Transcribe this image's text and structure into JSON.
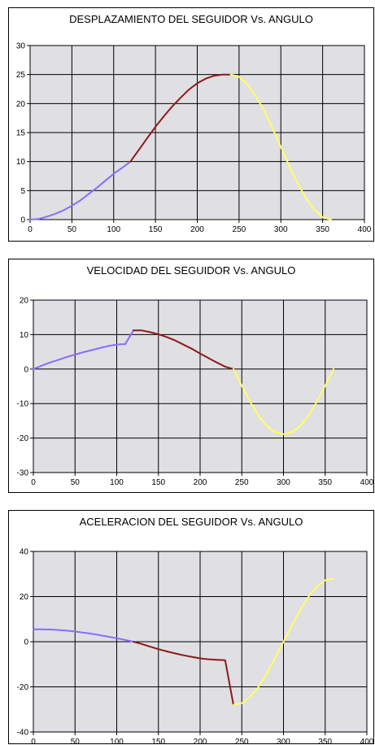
{
  "chart_data": [
    {
      "type": "line",
      "title": "DESPLAZAMIENTO DEL SEGUIDOR Vs. ANGULO",
      "xlabel": "",
      "ylabel": "",
      "xlim": [
        0,
        400
      ],
      "ylim": [
        0,
        30
      ],
      "xticks": [
        0,
        50,
        100,
        150,
        200,
        250,
        300,
        350,
        400
      ],
      "yticks": [
        0,
        5,
        10,
        15,
        20,
        25,
        30
      ],
      "grid": true,
      "plot_background": "#e0dfe3",
      "series": [
        {
          "color": "#8a6cff",
          "x": [
            0,
            10,
            20,
            30,
            40,
            50,
            60,
            70,
            80,
            90,
            100,
            110,
            120
          ],
          "y": [
            0,
            0.1,
            0.5,
            1.0,
            1.6,
            2.4,
            3.3,
            4.4,
            5.5,
            6.7,
            7.9,
            8.9,
            10.0
          ]
        },
        {
          "color": "#8b1a1a",
          "x": [
            120,
            130,
            140,
            150,
            160,
            170,
            180,
            190,
            200,
            210,
            220,
            230,
            240
          ],
          "y": [
            10.0,
            12.0,
            14.0,
            16.0,
            17.8,
            19.5,
            21.0,
            22.4,
            23.5,
            24.3,
            24.8,
            25.0,
            25.0
          ]
        },
        {
          "color": "#ffff66",
          "x": [
            240,
            250,
            260,
            270,
            280,
            290,
            300,
            310,
            320,
            330,
            340,
            350,
            360
          ],
          "y": [
            25.0,
            24.6,
            23.3,
            21.3,
            18.8,
            15.7,
            12.5,
            9.3,
            6.3,
            3.7,
            1.7,
            0.4,
            0
          ]
        }
      ]
    },
    {
      "type": "line",
      "title": "VELOCIDAD DEL SEGUIDOR Vs. ANGULO",
      "xlabel": "",
      "ylabel": "",
      "xlim": [
        0,
        400
      ],
      "ylim": [
        -30,
        20
      ],
      "xticks": [
        0,
        50,
        100,
        150,
        200,
        250,
        300,
        350,
        400
      ],
      "yticks": [
        -30,
        -20,
        -10,
        0,
        10,
        20
      ],
      "grid": true,
      "plot_background": "#e0dfe3",
      "series": [
        {
          "color": "#8a6cff",
          "x": [
            0,
            10,
            20,
            30,
            40,
            50,
            60,
            70,
            80,
            90,
            100,
            105,
            110,
            120
          ],
          "y": [
            0,
            1.0,
            1.9,
            2.7,
            3.5,
            4.2,
            4.9,
            5.5,
            6.1,
            6.7,
            7.1,
            7.2,
            7.2,
            11.2
          ]
        },
        {
          "color": "#8b1a1a",
          "x": [
            120,
            130,
            140,
            150,
            160,
            170,
            180,
            190,
            200,
            210,
            220,
            230,
            240
          ],
          "y": [
            11.2,
            11.2,
            10.7,
            10.1,
            9.3,
            8.3,
            7.1,
            5.9,
            4.5,
            3.2,
            1.9,
            0.7,
            0
          ]
        },
        {
          "color": "#ffff66",
          "x": [
            240,
            250,
            260,
            270,
            280,
            290,
            300,
            310,
            320,
            330,
            340,
            350,
            360
          ],
          "y": [
            0,
            -4.8,
            -9.5,
            -13.5,
            -16.5,
            -18.3,
            -18.9,
            -18.3,
            -16.5,
            -13.5,
            -9.5,
            -4.8,
            0
          ]
        }
      ]
    },
    {
      "type": "line",
      "title": "ACELERACION DEL SEGUIDOR Vs. ANGULO",
      "xlabel": "",
      "ylabel": "",
      "xlim": [
        0,
        400
      ],
      "ylim": [
        -40,
        40
      ],
      "xticks": [
        0,
        50,
        100,
        150,
        200,
        250,
        300,
        350,
        400
      ],
      "yticks": [
        -40,
        -20,
        0,
        20,
        40
      ],
      "grid": true,
      "plot_background": "#e0dfe3",
      "series": [
        {
          "color": "#8a6cff",
          "x": [
            0,
            10,
            20,
            30,
            40,
            50,
            60,
            70,
            80,
            90,
            100,
            110,
            120
          ],
          "y": [
            5.5,
            5.5,
            5.4,
            5.2,
            4.9,
            4.5,
            4.0,
            3.5,
            2.9,
            2.2,
            1.5,
            0.8,
            0
          ]
        },
        {
          "color": "#8b1a1a",
          "x": [
            120,
            130,
            140,
            150,
            160,
            170,
            180,
            190,
            200,
            210,
            220,
            230,
            240
          ],
          "y": [
            0,
            -1.0,
            -2.2,
            -3.3,
            -4.3,
            -5.2,
            -6.0,
            -6.7,
            -7.4,
            -7.8,
            -8.0,
            -8.2,
            -28.0
          ]
        },
        {
          "color": "#ffff66",
          "x": [
            240,
            250,
            260,
            270,
            280,
            290,
            300,
            310,
            320,
            330,
            340,
            350,
            360
          ],
          "y": [
            -28.0,
            -27.2,
            -24.5,
            -20.0,
            -14.0,
            -7.2,
            0,
            7.2,
            14.0,
            20.0,
            24.5,
            27.2,
            28.0
          ]
        }
      ]
    }
  ]
}
